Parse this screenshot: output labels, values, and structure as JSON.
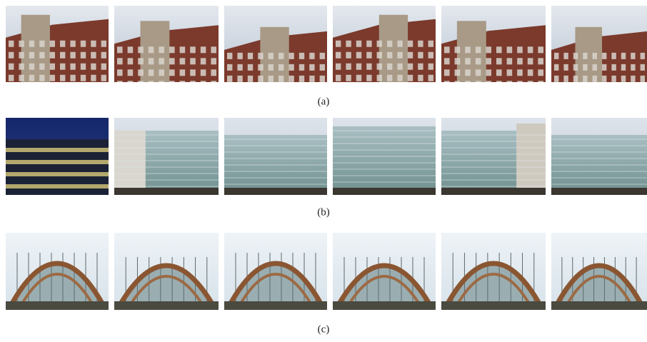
{
  "figure": {
    "rows": [
      {
        "caption": "(a)"
      },
      {
        "caption": "(b)"
      },
      {
        "caption": "(c)"
      }
    ]
  }
}
